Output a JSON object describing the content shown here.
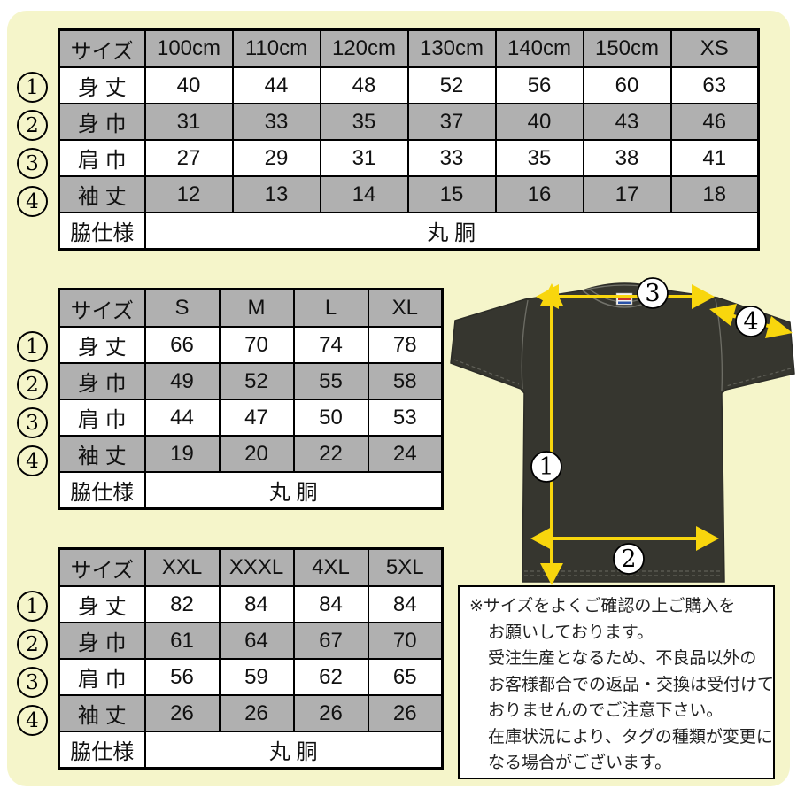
{
  "colors": {
    "background": "#f5f5ca",
    "table_gray": "#b0b0b0",
    "table_white": "#ffffff",
    "shirt": "#36362f",
    "arrow_yellow": "#f8d60d",
    "tag_red": "#c8322d",
    "tag_blue": "#2a52a8"
  },
  "tables": [
    {
      "name": "kids-sizes",
      "header": [
        "サイズ",
        "100cm",
        "110cm",
        "120cm",
        "130cm",
        "140cm",
        "150cm",
        "XS"
      ],
      "rows": [
        {
          "num": "1",
          "label": "身 丈",
          "values": [
            "40",
            "44",
            "48",
            "52",
            "56",
            "60",
            "63"
          ]
        },
        {
          "num": "2",
          "label": "身 巾",
          "values": [
            "31",
            "33",
            "35",
            "37",
            "40",
            "43",
            "46"
          ]
        },
        {
          "num": "3",
          "label": "肩 巾",
          "values": [
            "27",
            "29",
            "31",
            "33",
            "35",
            "38",
            "41"
          ]
        },
        {
          "num": "4",
          "label": "袖 丈",
          "values": [
            "12",
            "13",
            "14",
            "15",
            "16",
            "17",
            "18"
          ]
        }
      ],
      "footer": {
        "label": "脇仕様",
        "value": "丸 胴"
      }
    },
    {
      "name": "adult-sizes",
      "header": [
        "サイズ",
        "S",
        "M",
        "L",
        "XL"
      ],
      "rows": [
        {
          "num": "1",
          "label": "身 丈",
          "values": [
            "66",
            "70",
            "74",
            "78"
          ]
        },
        {
          "num": "2",
          "label": "身 巾",
          "values": [
            "49",
            "52",
            "55",
            "58"
          ]
        },
        {
          "num": "3",
          "label": "肩 巾",
          "values": [
            "44",
            "47",
            "50",
            "53"
          ]
        },
        {
          "num": "4",
          "label": "袖 丈",
          "values": [
            "19",
            "20",
            "22",
            "24"
          ]
        }
      ],
      "footer": {
        "label": "脇仕様",
        "value": "丸 胴"
      }
    },
    {
      "name": "big-sizes",
      "header": [
        "サイズ",
        "XXL",
        "XXXL",
        "4XL",
        "5XL"
      ],
      "rows": [
        {
          "num": "1",
          "label": "身 丈",
          "values": [
            "82",
            "84",
            "84",
            "84"
          ]
        },
        {
          "num": "2",
          "label": "身 巾",
          "values": [
            "61",
            "64",
            "67",
            "70"
          ]
        },
        {
          "num": "3",
          "label": "肩 巾",
          "values": [
            "56",
            "59",
            "62",
            "65"
          ]
        },
        {
          "num": "4",
          "label": "袖 丈",
          "values": [
            "26",
            "26",
            "26",
            "26"
          ]
        }
      ],
      "footer": {
        "label": "脇仕様",
        "value": "丸 胴"
      }
    }
  ],
  "diagram": {
    "markers": [
      "1",
      "2",
      "3",
      "4"
    ]
  },
  "note": {
    "lines": [
      "※サイズをよくご確認の上ご購入を",
      "お願いしております。",
      "受注生産となるため、不良品以外の",
      "お客様都合での返品・交換は受付けて",
      "おりませんのでご注意下さい。",
      "在庫状況により、タグの種類が変更に",
      "なる場合がございます。"
    ]
  }
}
